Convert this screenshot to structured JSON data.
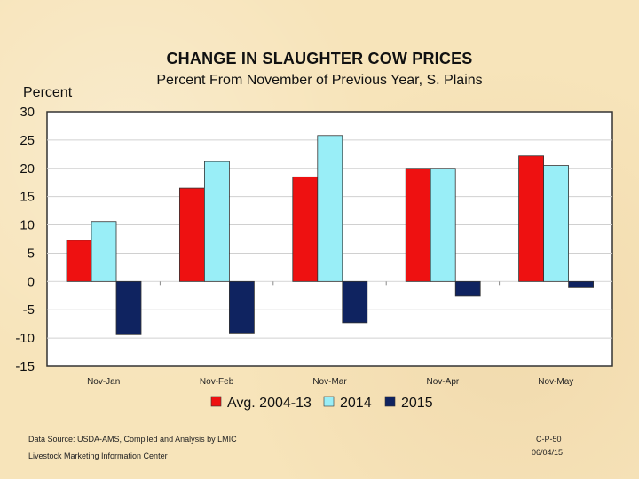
{
  "chart_data": {
    "type": "bar",
    "title": "CHANGE IN SLAUGHTER COW PRICES",
    "subtitle": "Percent From November of Previous Year, S. Plains",
    "ylabel": "Percent",
    "xlabel": "",
    "ylim": [
      -15,
      30
    ],
    "yticks": [
      30,
      25,
      20,
      15,
      10,
      5,
      0,
      -5,
      -10,
      -15
    ],
    "categories": [
      "Nov-Jan",
      "Nov-Feb",
      "Nov-Mar",
      "Nov-Apr",
      "Nov-May"
    ],
    "series": [
      {
        "name": "Avg. 2004-13",
        "color": "#ee1111",
        "values": [
          7.3,
          16.5,
          18.5,
          20.0,
          22.2
        ]
      },
      {
        "name": "2014",
        "color": "#99eef7",
        "values": [
          10.6,
          21.2,
          25.8,
          20.0,
          20.5
        ]
      },
      {
        "name": "2015",
        "color": "#0f2360",
        "values": [
          -9.4,
          -9.1,
          -7.3,
          -2.6,
          -1.1
        ]
      }
    ],
    "grid": true,
    "legend": "bottom"
  },
  "footer": {
    "source": "Data Source:  USDA-AMS, Compiled and Analysis by LMIC",
    "center": "Livestock Marketing Information Center",
    "code": "C-P-50",
    "date": "06/04/15"
  }
}
